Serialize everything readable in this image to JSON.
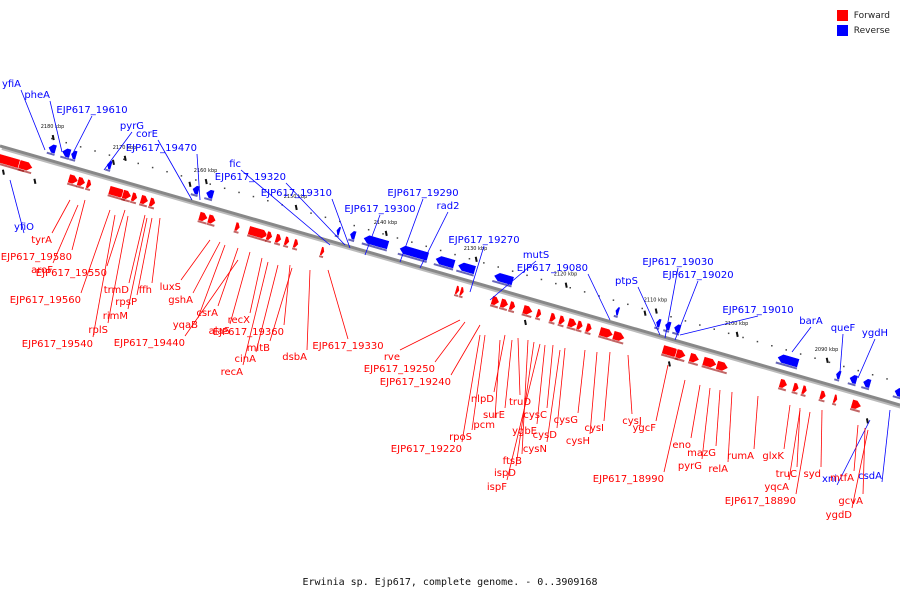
{
  "colors": {
    "forward": "#ff0000",
    "reverse": "#0000ff",
    "axis": "#888888",
    "tick": "#111111"
  },
  "legend": {
    "forward_label": "Forward",
    "reverse_label": "Reverse"
  },
  "caption": "Erwinia sp. Ejp617, complete genome. - 0..3909168",
  "ticks": [
    "2180 kbp",
    "2170 kbp",
    "2160 kbp",
    "2150 kbp",
    "2140 kbp",
    "2130 kbp",
    "2120 kbp",
    "2110 kbp",
    "2100 kbp",
    "2090 kbp"
  ],
  "reverse_labels": [
    "yfiA",
    "pheA",
    "EJP617_19610",
    "pyrG",
    "corE",
    "EJP617_19470",
    "fic",
    "EJP617_19320",
    "EJP617_19310",
    "EJP617_19300",
    "EJP617_19290",
    "rad2",
    "EJP617_19270",
    "mutS",
    "EJP617_19080",
    "ptpS",
    "EJP617_19030",
    "EJP617_19020",
    "EJP617_19010",
    "barA",
    "queF",
    "ygdH",
    "yfiO",
    "xni",
    "csdA"
  ],
  "forward_labels": [
    "tyrA",
    "EJP617_19580",
    "aroF",
    "EJP617_19550",
    "EJP617_19560",
    "trmD",
    "ffh",
    "rpsP",
    "rimM",
    "rplS",
    "EJP617_19540",
    "luxS",
    "gshA",
    "yqaB",
    "csrA",
    "alaS",
    "recX",
    "EJP617_19440",
    "EJP617_19360",
    "mltB",
    "cinA",
    "recA",
    "dsbA",
    "EJP617_19330",
    "rve",
    "EJP617_19250",
    "EJP617_19240",
    "nlpD",
    "truD",
    "surE",
    "pcm",
    "rpoS",
    "EJP617_19220",
    "ftsB",
    "ispD",
    "ispF",
    "ygbE",
    "cysC",
    "cysD",
    "cysN",
    "cysG",
    "cysH",
    "cysI",
    "cysJ",
    "ygcF",
    "EJP617_18990",
    "eno",
    "mazG",
    "pyrG",
    "relA",
    "rumA",
    "glxK",
    "truC",
    "yqcA",
    "syd",
    "EJP617_18890",
    "mtfA",
    "gcvA",
    "ygdD"
  ]
}
